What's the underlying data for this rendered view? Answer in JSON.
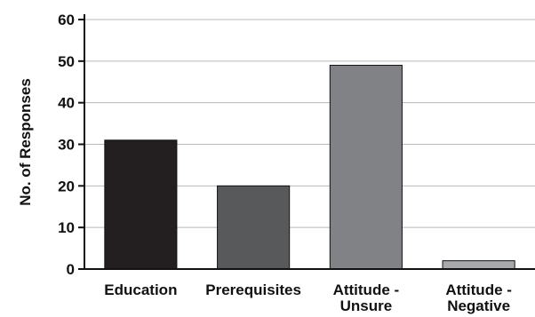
{
  "chart_data": {
    "type": "bar",
    "title": "",
    "xlabel": "",
    "ylabel": "No. of Responses",
    "ylim": [
      0,
      60
    ],
    "yticks": [
      0,
      10,
      20,
      30,
      40,
      50,
      60
    ],
    "grid": true,
    "categories": [
      [
        "Education"
      ],
      [
        "Prerequisites"
      ],
      [
        "Attitude -",
        "Unsure"
      ],
      [
        "Attitude -",
        "Negative"
      ]
    ],
    "values": [
      31,
      20,
      49,
      2
    ],
    "colors": [
      "#231f20",
      "#58595b",
      "#808285",
      "#a7a9ac"
    ]
  }
}
